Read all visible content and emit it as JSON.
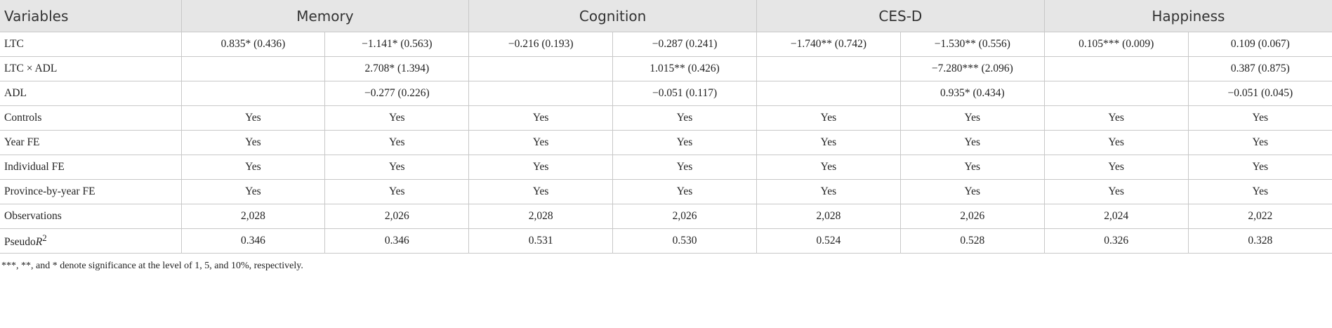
{
  "table": {
    "header": [
      "Variables",
      "Memory",
      "Cognition",
      "CES-D",
      "Happiness"
    ],
    "rows": [
      {
        "label": "LTC",
        "cells": [
          "0.835* (0.436)",
          "−1.141* (0.563)",
          "−0.216 (0.193)",
          "−0.287 (0.241)",
          "−1.740** (0.742)",
          "−1.530** (0.556)",
          "0.105*** (0.009)",
          "0.109 (0.067)"
        ]
      },
      {
        "label": "LTC × ADL",
        "cells": [
          null,
          "2.708* (1.394)",
          null,
          "1.015** (0.426)",
          null,
          "−7.280*** (2.096)",
          null,
          "0.387 (0.875)"
        ]
      },
      {
        "label": "ADL",
        "cells": [
          null,
          "−0.277 (0.226)",
          null,
          "−0.051 (0.117)",
          null,
          "0.935* (0.434)",
          null,
          "−0.051 (0.045)"
        ]
      },
      {
        "label": "Controls",
        "cells": [
          "Yes",
          "Yes",
          "Yes",
          "Yes",
          "Yes",
          "Yes",
          "Yes",
          "Yes"
        ]
      },
      {
        "label": "Year FE",
        "cells": [
          "Yes",
          "Yes",
          "Yes",
          "Yes",
          "Yes",
          "Yes",
          "Yes",
          "Yes"
        ]
      },
      {
        "label": "Individual FE",
        "cells": [
          "Yes",
          "Yes",
          "Yes",
          "Yes",
          "Yes",
          "Yes",
          "Yes",
          "Yes"
        ]
      },
      {
        "label": "Province-by-year FE",
        "cells": [
          "Yes",
          "Yes",
          "Yes",
          "Yes",
          "Yes",
          "Yes",
          "Yes",
          "Yes"
        ]
      },
      {
        "label": "Observations",
        "cells": [
          "2,028",
          "2,026",
          "2,028",
          "2,026",
          "2,028",
          "2,026",
          "2,024",
          "2,022"
        ]
      },
      {
        "label": {
          "text": "Pseudo",
          "italic": "R",
          "superscript": "2"
        },
        "cells": [
          "0.346",
          "0.346",
          "0.531",
          "0.530",
          "0.524",
          "0.528",
          "0.326",
          "0.328"
        ]
      }
    ]
  },
  "footnote": "***, **, and * denote significance at the level of 1, 5, and 10%, respectively."
}
